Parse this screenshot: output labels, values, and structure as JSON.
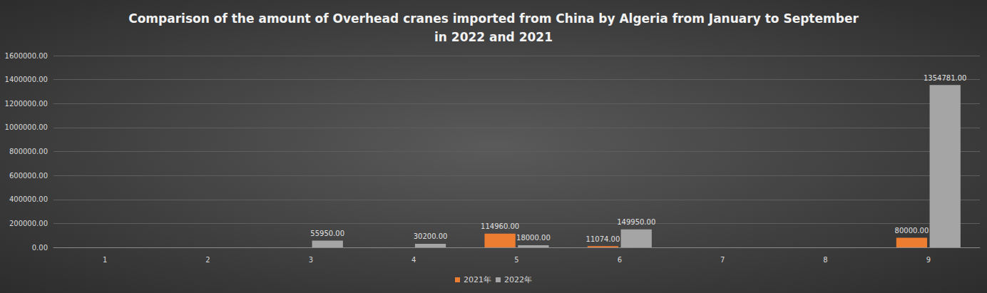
{
  "chart_data": {
    "type": "bar",
    "title": "Comparison of the amount of Overhead cranes imported from China by Algeria from January to September\nin 2022 and 2021",
    "categories": [
      "1",
      "2",
      "3",
      "4",
      "5",
      "6",
      "7",
      "8",
      "9"
    ],
    "series": [
      {
        "name": "2021年",
        "color": "#ed7d31",
        "values": [
          null,
          null,
          null,
          null,
          114960,
          11074,
          null,
          null,
          80000
        ],
        "value_labels": [
          null,
          null,
          null,
          null,
          "114960.00",
          "11074.00",
          null,
          null,
          "80000.00"
        ]
      },
      {
        "name": "2022年",
        "color": "#a5a5a5",
        "values": [
          null,
          null,
          55950,
          30200,
          18000,
          149950,
          null,
          null,
          1354781
        ],
        "value_labels": [
          null,
          null,
          "55950.00",
          "30200.00",
          "18000.00",
          "149950.00",
          null,
          null,
          "1354781.00"
        ]
      }
    ],
    "ylim": [
      0,
      1600000
    ],
    "yticks": [
      {
        "value": 0,
        "label": "0.00"
      },
      {
        "value": 200000,
        "label": "200000.00"
      },
      {
        "value": 400000,
        "label": "400000.00"
      },
      {
        "value": 600000,
        "label": "600000.00"
      },
      {
        "value": 800000,
        "label": "800000.00"
      },
      {
        "value": 1000000,
        "label": "1000000.00"
      },
      {
        "value": 1200000,
        "label": "1200000.00"
      },
      {
        "value": 1400000,
        "label": "1400000.00"
      },
      {
        "value": 1600000,
        "label": "1600000.00"
      }
    ],
    "grid": true,
    "legend": "bottom",
    "data_labels": true
  }
}
